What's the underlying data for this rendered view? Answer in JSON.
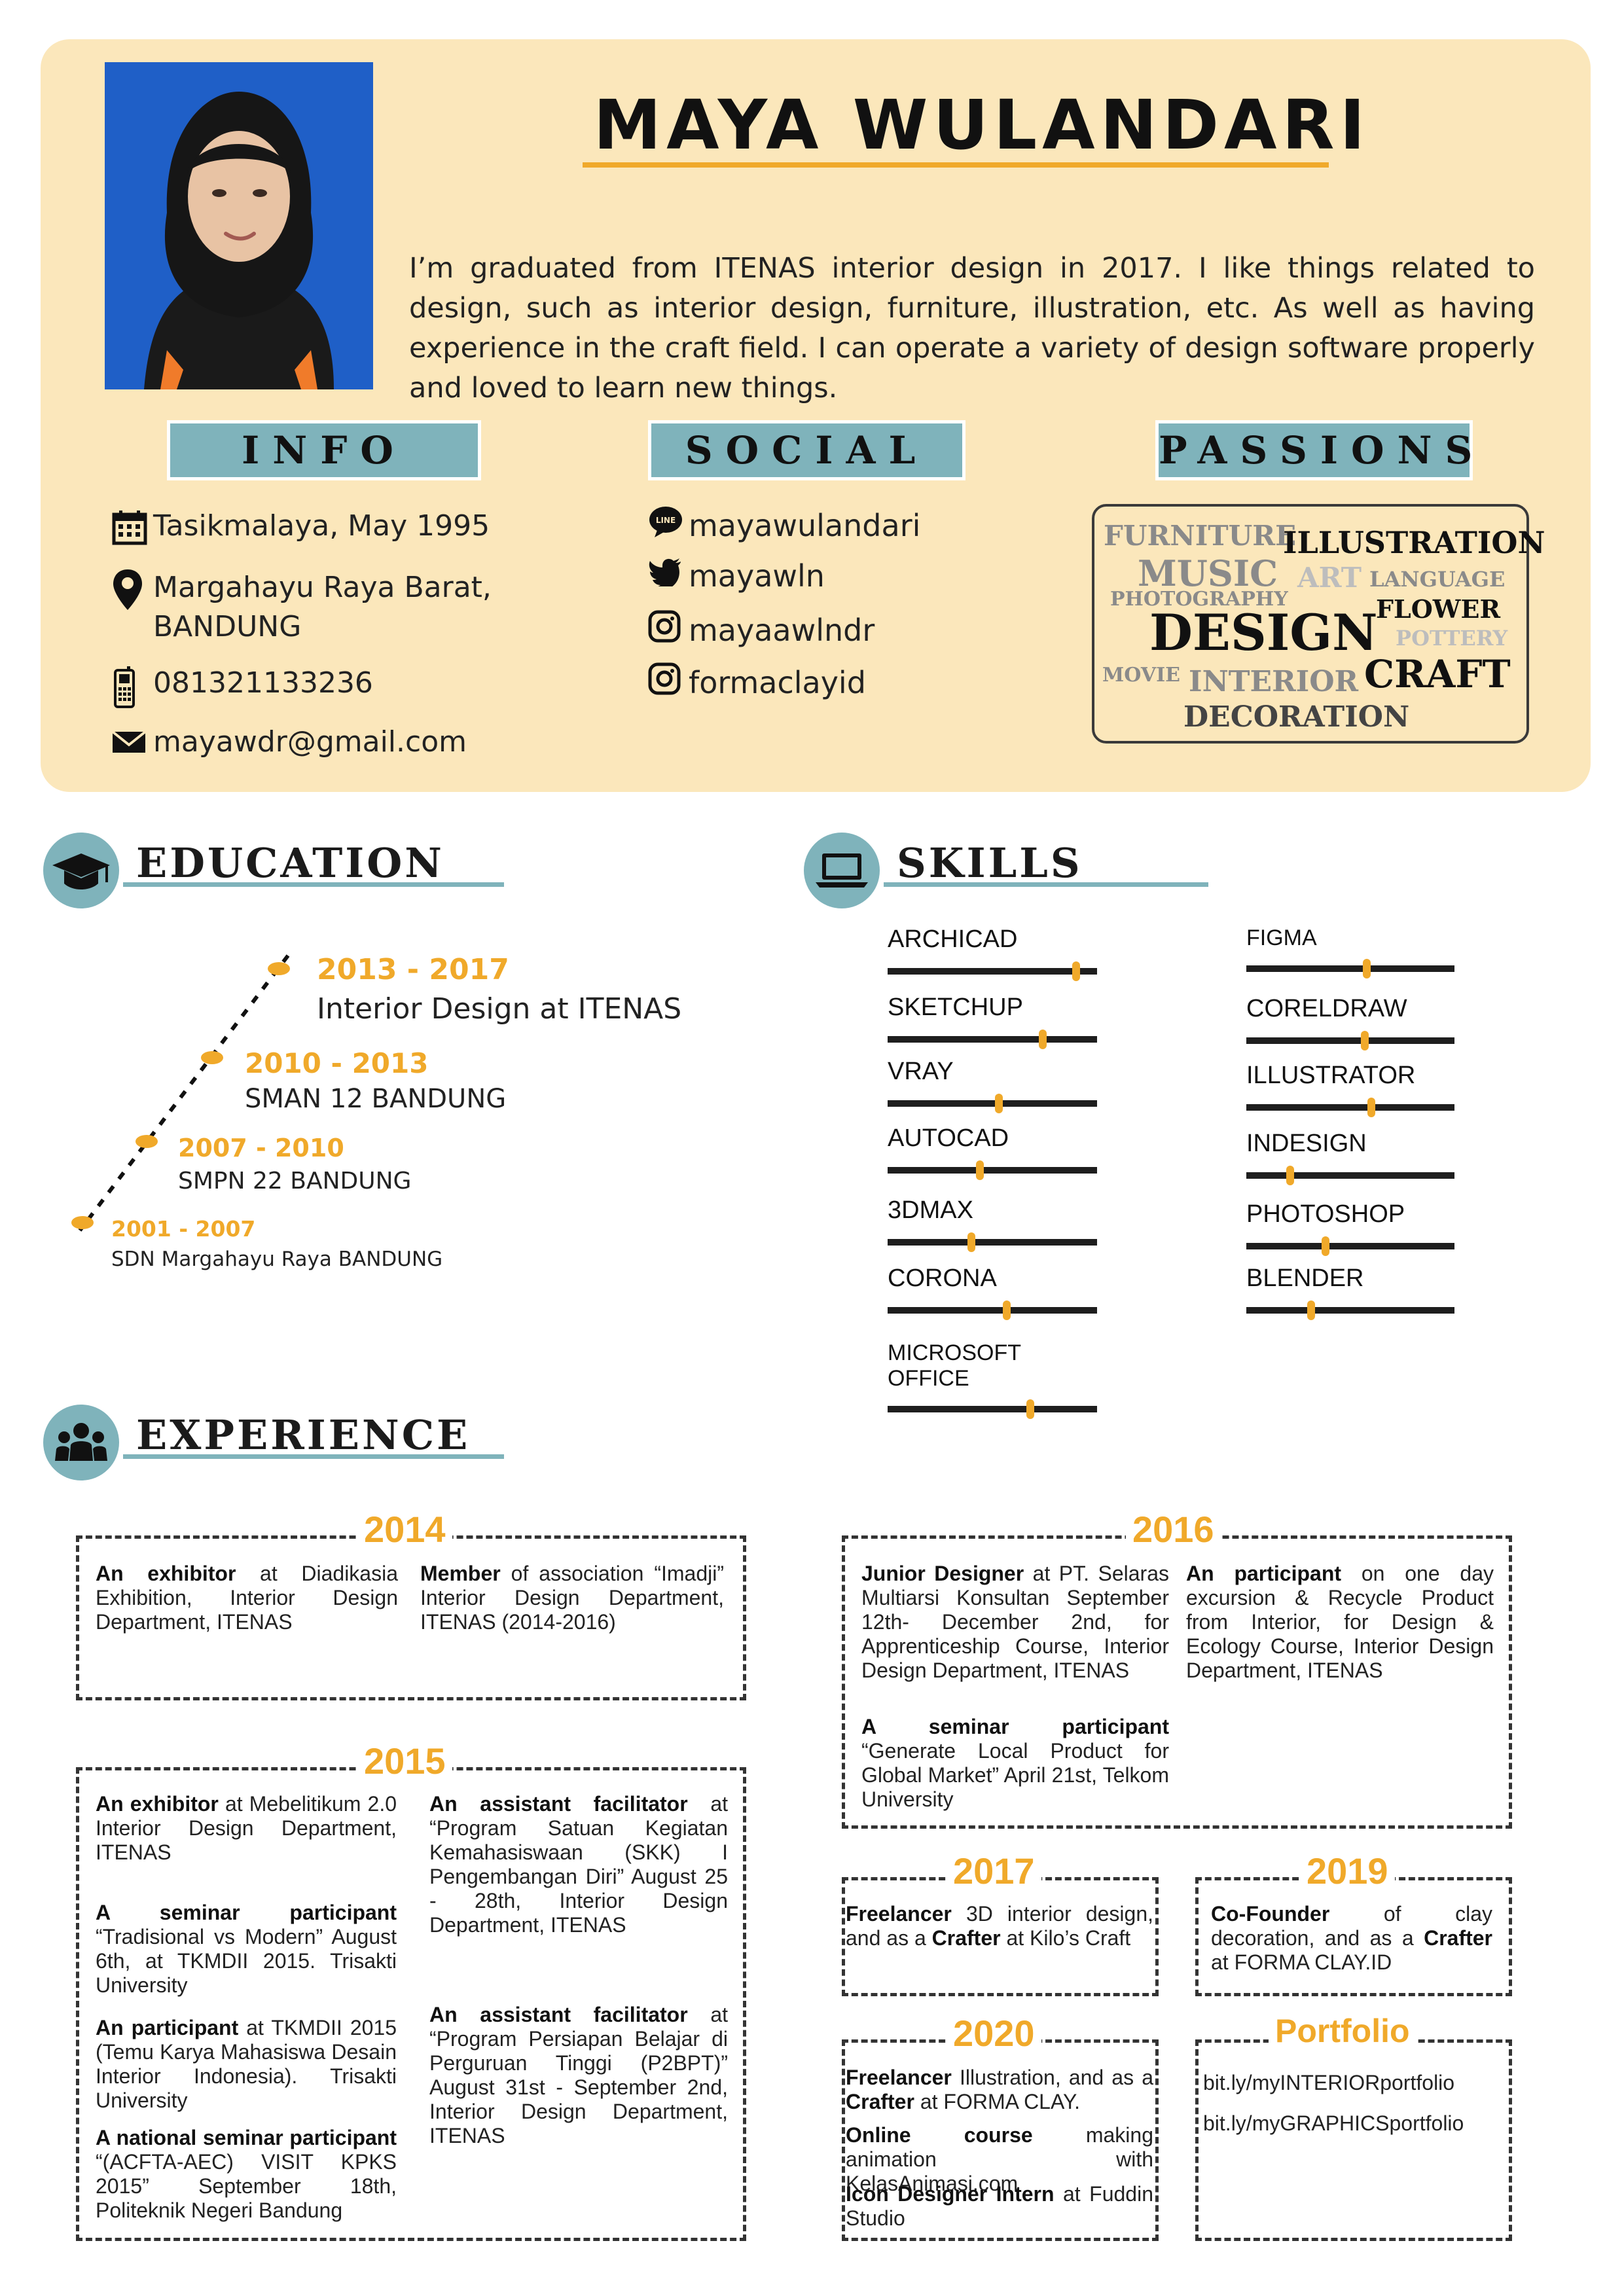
{
  "profile": {
    "name": "MAYA WULANDARI",
    "summary": "I’m graduated from ITENAS interior design in 2017. I like things related to design, such as interior design, furniture, illustration, etc. As well as having experience in the craft field. I can operate a variety of design software properly and loved to learn new things."
  },
  "info": {
    "title": "INFO",
    "birth": "Tasikmalaya, May 1995",
    "address_line1": "Margahayu Raya Barat,",
    "address_line2": "BANDUNG",
    "phone": "081321133236",
    "email": "mayawdr@gmail.com"
  },
  "social": {
    "title": "SOCIAL",
    "line_badge": "LINE",
    "line": "mayawulandari",
    "twitter": "mayawln",
    "instagram1": "mayaawlndr",
    "instagram2": "formaclayid"
  },
  "passions": {
    "title": "PASSIONS",
    "words": [
      "FURNITURE",
      "ILLUSTRATION",
      "MUSIC",
      "ART",
      "LANGUAGE",
      "PHOTOGRAPHY",
      "FLOWER",
      "DESIGN",
      "POTTERY",
      "MOVIE",
      "INTERIOR",
      "CRAFT",
      "DECORATION"
    ]
  },
  "education": {
    "title": "EDUCATION",
    "items": [
      {
        "years": "2013 - 2017",
        "school": "Interior Design at ITENAS"
      },
      {
        "years": "2010 - 2013",
        "school": "SMAN 12 BANDUNG"
      },
      {
        "years": "2007 - 2010",
        "school": "SMPN 22 BANDUNG"
      },
      {
        "years": "2001 - 2007",
        "school": "SDN Margahayu Raya BANDUNG"
      }
    ]
  },
  "skills": {
    "title": "SKILLS",
    "left": [
      {
        "name": "ARCHICAD",
        "level": 0.9
      },
      {
        "name": "SKETCHUP",
        "level": 0.74
      },
      {
        "name": "VRAY",
        "level": 0.53
      },
      {
        "name": "AUTOCAD",
        "level": 0.44
      },
      {
        "name": "3DMAX",
        "level": 0.4
      },
      {
        "name": "CORONA",
        "level": 0.57
      },
      {
        "name": "MICROSOFT OFFICE",
        "level": 0.68
      }
    ],
    "right": [
      {
        "name": "FIGMA",
        "level": 0.58
      },
      {
        "name": "CORELDRAW",
        "level": 0.57
      },
      {
        "name": "ILLUSTRATOR",
        "level": 0.6
      },
      {
        "name": "INDESIGN",
        "level": 0.21
      },
      {
        "name": "PHOTOSHOP",
        "level": 0.38
      },
      {
        "name": "BLENDER",
        "level": 0.31
      }
    ]
  },
  "experience": {
    "title": "EXPERIENCE",
    "y2014": {
      "year": "2014",
      "a_bold": "An exhibitor",
      "a_rest": " at Diadikasia Exhibition, Interior Design Department, ITENAS",
      "b_bold": "Member",
      "b_rest": " of association “Imadji” Interior Design Department, ITENAS (2014-2016)"
    },
    "y2015": {
      "year": "2015",
      "a_bold": "An exhibitor",
      "a_rest": " at Mebelitikum 2.0 Interior Design Department, ITENAS",
      "b_bold": "A seminar participant",
      "b_rest": " “Tradisional vs Modern” August 6th, at TKMDII 2015. Trisakti University",
      "c_bold": "An participant",
      "c_rest": " at TKMDII 2015 (Temu Karya Mahasiswa Desain Interior Indonesia). Trisakti University",
      "d_bold": "A national seminar participant",
      "d_rest": " “(ACFTA-AEC) VISIT KPKS 2015” September 18th, Politeknik Negeri Bandung",
      "e_bold": "An assistant facilitator",
      "e_rest": " at “Program Satuan Kegiatan Kemahasiswaan (SKK) I Pengembangan Diri” August 25 - 28th, Interior Design Department, ITENAS",
      "f_bold": "An assistant facilitator",
      "f_rest": " at “Program Persiapan Belajar di Perguruan Tinggi (P2BPT)” August 31st - September 2nd, Interior Design Department, ITENAS"
    },
    "y2016": {
      "year": "2016",
      "a_bold": "Junior Designer",
      "a_rest": " at PT. Selaras Multiarsi Konsultan September 12th- December 2nd, for Apprenticeship Course, Interior Design Department, ITENAS",
      "b_bold": "A seminar participant",
      "b_rest": " “Generate Local Product for Global Market” April 21st, Telkom University",
      "c_bold": "An participant",
      "c_rest": " on one day excursion & Recycle Product from Interior, for Design & Ecology Course, Interior Design Department, ITENAS"
    },
    "y2017": {
      "year": "2017",
      "a_bold1": "Freelancer",
      "a_mid": " 3D interior design, and as a ",
      "a_bold2": "Crafter",
      "a_rest": " at Kilo’s Craft"
    },
    "y2019": {
      "year": "2019",
      "a_bold1": "Co-Founder",
      "a_mid": " of clay decoration, and as a ",
      "a_bold2": "Crafter",
      "a_rest": " at FORMA CLAY.ID"
    },
    "y2020": {
      "year": "2020",
      "a_bold1": "Freelancer",
      "a_mid": " Illustration, and as a ",
      "a_bold2": "Crafter",
      "a_rest": " at FORMA CLAY.",
      "b_bold": "Online course",
      "b_rest": " making animation with KelasAnimasi.com",
      "c_bold": "Icon Designer Intern",
      "c_rest": " at Fuddin Studio"
    },
    "portfolio": {
      "title": "Portfolio",
      "link1": "bit.ly/myINTERIORportfolio",
      "link2": "bit.ly/myGRAPHICSportfolio"
    }
  },
  "colors": {
    "panel": "#fbe7bb",
    "accent": "#f0a92a",
    "teal": "#7fb3bb",
    "photo_bg": "#1f5fc7"
  }
}
